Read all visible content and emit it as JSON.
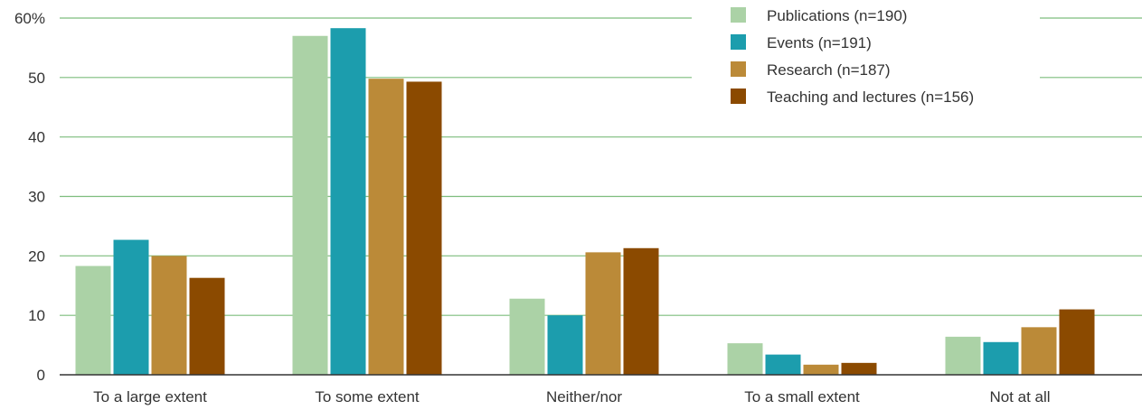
{
  "chart_data": {
    "type": "bar",
    "categories": [
      "To a large extent",
      "To some extent",
      "Neither/nor",
      "To a small extent",
      "Not at all"
    ],
    "series": [
      {
        "name": "Publications (n=190)",
        "color": "#abd2a6",
        "values": [
          18.3,
          57.0,
          12.8,
          5.3,
          6.4
        ]
      },
      {
        "name": "Events (n=191)",
        "color": "#1c9dad",
        "values": [
          22.7,
          58.3,
          10.0,
          3.4,
          5.5
        ]
      },
      {
        "name": "Research (n=187)",
        "color": "#bb8a38",
        "values": [
          20.0,
          49.8,
          20.6,
          1.7,
          8.0
        ]
      },
      {
        "name": "Teaching and lectures (n=156)",
        "color": "#8b4a00",
        "values": [
          16.3,
          49.3,
          21.3,
          2.0,
          11.0
        ]
      }
    ],
    "y_ticks": [
      "0",
      "10",
      "20",
      "30",
      "40",
      "50",
      "60%"
    ],
    "ylim": [
      0,
      60
    ],
    "title": "",
    "xlabel": "",
    "ylabel": "",
    "grid": true,
    "grid_color": "#7dbd7d",
    "legend_position": "top-right"
  }
}
